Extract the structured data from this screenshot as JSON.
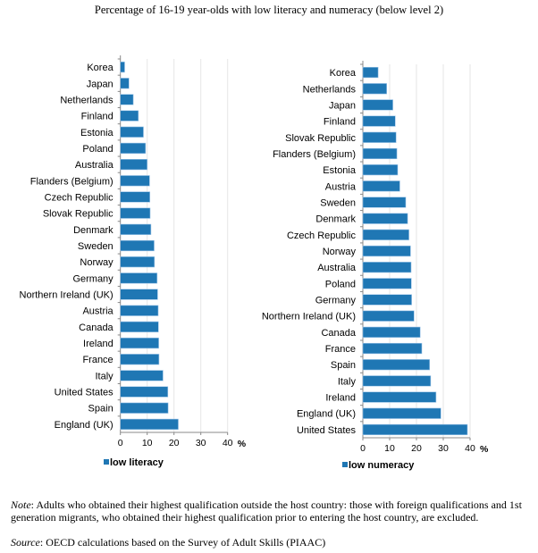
{
  "chart_data": [
    {
      "type": "bar",
      "orientation": "horizontal",
      "title": "Percentage of 16-19 year-olds with low literacy and numeracy (below level 2)",
      "categories": [
        "Korea",
        "Japan",
        "Netherlands",
        "Finland",
        "Estonia",
        "Poland",
        "Australia",
        "Flanders (Belgium)",
        "Czech Republic",
        "Slovak Republic",
        "Denmark",
        "Sweden",
        "Norway",
        "Germany",
        "Northern Ireland (UK)",
        "Austria",
        "Canada",
        "Ireland",
        "France",
        "Italy",
        "United States",
        "Spain",
        "England (UK)"
      ],
      "series": [
        {
          "name": "low literacy",
          "values": [
            1.6,
            3.2,
            4.8,
            6.7,
            8.6,
            9.4,
            10.0,
            10.9,
            11.0,
            11.1,
            11.4,
            12.6,
            12.7,
            13.7,
            13.9,
            14.1,
            14.2,
            14.3,
            14.4,
            15.9,
            17.7,
            17.8,
            21.6
          ]
        }
      ],
      "xlim": [
        0,
        40
      ],
      "xticks": [
        "0",
        "10",
        "20",
        "30",
        "40"
      ],
      "xunit": "%",
      "grid": true,
      "legend": "bottom",
      "color": "#1f77b4"
    },
    {
      "type": "bar",
      "orientation": "horizontal",
      "categories": [
        "Korea",
        "Netherlands",
        "Japan",
        "Finland",
        "Slovak Republic",
        "Flanders (Belgium)",
        "Estonia",
        "Austria",
        "Sweden",
        "Denmark",
        "Czech Republic",
        "Norway",
        "Australia",
        "Poland",
        "Germany",
        "Northern Ireland (UK)",
        "Canada",
        "France",
        "Spain",
        "Italy",
        "Ireland",
        "England (UK)",
        "United States"
      ],
      "series": [
        {
          "name": "low numeracy",
          "values": [
            5.7,
            8.9,
            11.2,
            12.1,
            12.4,
            12.7,
            13.0,
            13.8,
            16.0,
            16.7,
            17.2,
            17.8,
            18.0,
            18.1,
            18.2,
            19.1,
            21.4,
            22.0,
            24.9,
            25.3,
            27.3,
            29.1,
            39.0
          ]
        }
      ],
      "xlim": [
        0,
        40
      ],
      "xticks": [
        "0",
        "10",
        "20",
        "30",
        "40"
      ],
      "xunit": "%",
      "grid": true,
      "legend": "bottom",
      "color": "#1f77b4"
    }
  ],
  "note_label": "Note",
  "note_text": ": Adults who obtained their highest qualification outside the host country: those with foreign qualifications and 1st generation migrants, who obtained their highest qualification prior to entering the host country, are excluded.",
  "source_label": "Source",
  "source_text": ": OECD calculations based on the Survey of Adult Skills (PIAAC)"
}
